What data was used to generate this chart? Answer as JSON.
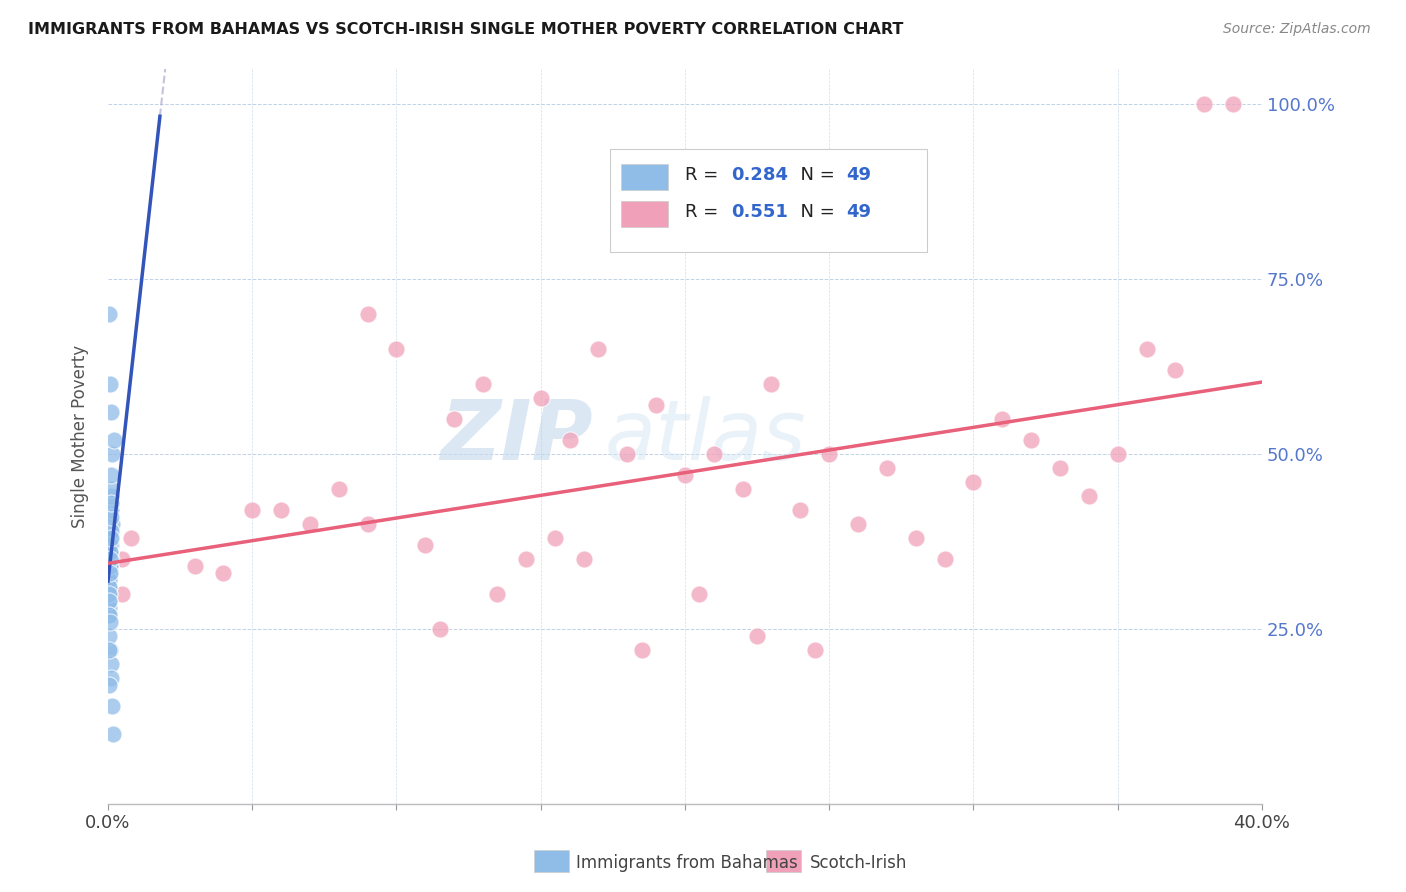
{
  "title": "IMMIGRANTS FROM BAHAMAS VS SCOTCH-IRISH SINGLE MOTHER POVERTY CORRELATION CHART",
  "source": "Source: ZipAtlas.com",
  "ylabel": "Single Mother Poverty",
  "right_yticklabels": [
    "",
    "25.0%",
    "50.0%",
    "75.0%",
    "100.0%"
  ],
  "right_yticks": [
    0.0,
    0.25,
    0.5,
    0.75,
    1.0
  ],
  "watermark_zip": "ZIP",
  "watermark_atlas": "atlas",
  "blue_color": "#90bce8",
  "pink_color": "#f0a0b8",
  "blue_line_color": "#3355bb",
  "pink_line_color": "#e8607a",
  "blue_dashed_color": "#aabbdd",
  "xmin": 0.0,
  "xmax": 0.4,
  "ymin": 0.0,
  "ymax": 1.05,
  "bahamas_x": [
    0.0002,
    0.0008,
    0.001,
    0.0005,
    0.0015,
    0.0003,
    0.0007,
    0.001,
    0.0004,
    0.0006,
    0.0008,
    0.001,
    0.0012,
    0.0003,
    0.0005,
    0.0002,
    0.0008,
    0.001,
    0.0004,
    0.0006,
    0.001,
    0.0003,
    0.0005,
    0.0007,
    0.001,
    0.0002,
    0.0015,
    0.002,
    0.0005,
    0.001,
    0.0008,
    0.0003,
    0.0012,
    0.0006,
    0.0004,
    0.001,
    0.0007,
    0.0003,
    0.0005,
    0.001,
    0.0008,
    0.0012,
    0.0005,
    0.0002,
    0.0015,
    0.0018,
    0.001,
    0.0006,
    0.0004
  ],
  "bahamas_y": [
    0.38,
    0.36,
    0.37,
    0.35,
    0.4,
    0.33,
    0.34,
    0.35,
    0.32,
    0.36,
    0.38,
    0.39,
    0.42,
    0.31,
    0.33,
    0.3,
    0.37,
    0.41,
    0.32,
    0.34,
    0.44,
    0.29,
    0.31,
    0.36,
    0.45,
    0.28,
    0.5,
    0.52,
    0.3,
    0.38,
    0.35,
    0.27,
    0.43,
    0.33,
    0.29,
    0.47,
    0.22,
    0.24,
    0.27,
    0.2,
    0.26,
    0.18,
    0.22,
    0.17,
    0.14,
    0.1,
    0.56,
    0.6,
    0.7
  ],
  "scotch_x": [
    0.005,
    0.008,
    0.09,
    0.1,
    0.12,
    0.13,
    0.005,
    0.15,
    0.16,
    0.17,
    0.18,
    0.19,
    0.2,
    0.21,
    0.05,
    0.06,
    0.07,
    0.08,
    0.09,
    0.22,
    0.23,
    0.11,
    0.24,
    0.25,
    0.26,
    0.03,
    0.04,
    0.28,
    0.29,
    0.3,
    0.31,
    0.32,
    0.33,
    0.34,
    0.35,
    0.36,
    0.37,
    0.38,
    0.39,
    0.145,
    0.27,
    0.155,
    0.165,
    0.205,
    0.225,
    0.185,
    0.245,
    0.135,
    0.115
  ],
  "scotch_y": [
    0.35,
    0.38,
    0.7,
    0.65,
    0.55,
    0.6,
    0.3,
    0.58,
    0.52,
    0.65,
    0.5,
    0.57,
    0.47,
    0.5,
    0.42,
    0.42,
    0.4,
    0.45,
    0.4,
    0.45,
    0.6,
    0.37,
    0.42,
    0.5,
    0.4,
    0.34,
    0.33,
    0.38,
    0.35,
    0.46,
    0.55,
    0.52,
    0.48,
    0.44,
    0.5,
    0.65,
    0.62,
    1.0,
    1.0,
    0.35,
    0.48,
    0.38,
    0.35,
    0.3,
    0.24,
    0.22,
    0.22,
    0.3,
    0.25
  ]
}
